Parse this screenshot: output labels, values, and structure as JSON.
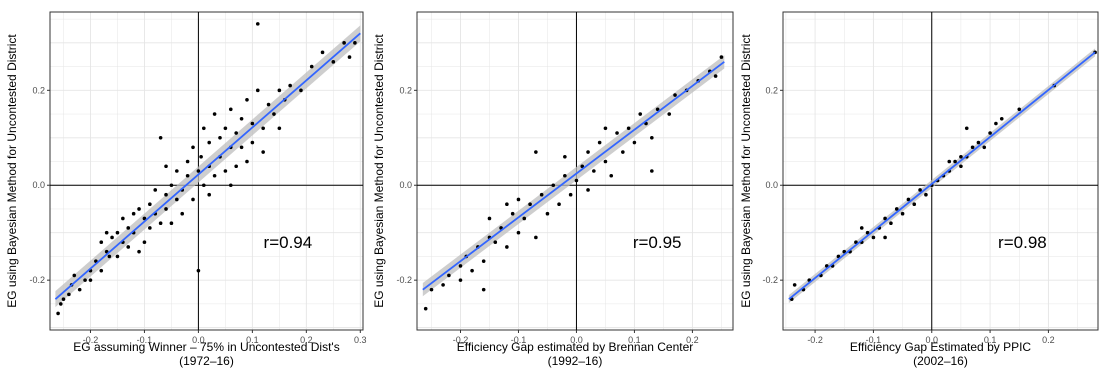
{
  "chart_data": [
    {
      "type": "scatter",
      "xlabel": "EG assuming Winner – 75% in Uncontested Dist's",
      "xlabel2": "(1972–16)",
      "ylabel": "EG using Bayesian Method for Uncontested District",
      "annotation": "r=0.94",
      "xlim": [
        -0.275,
        0.305
      ],
      "ylim": [
        -0.305,
        0.365
      ],
      "x_ticks": [
        -0.2,
        -0.1,
        0.0,
        0.1,
        0.2,
        0.3
      ],
      "x_tick_labels": [
        "-0.2",
        "-0.1",
        "0.0",
        "0.1",
        "0.2",
        "0.3"
      ],
      "y_ticks": [
        -0.2,
        0.0,
        0.2
      ],
      "y_tick_labels": [
        "-0.2",
        "0.0",
        "0.2"
      ],
      "grid": true,
      "fit": {
        "type": "linear",
        "x": [
          -0.265,
          0.3
        ],
        "y": [
          -0.24,
          0.32
        ],
        "band": 0.012
      },
      "points": [
        [
          -0.26,
          -0.27
        ],
        [
          -0.255,
          -0.25
        ],
        [
          -0.25,
          -0.24
        ],
        [
          -0.24,
          -0.23
        ],
        [
          -0.235,
          -0.21
        ],
        [
          -0.22,
          -0.22
        ],
        [
          -0.21,
          -0.2
        ],
        [
          -0.2,
          -0.2
        ],
        [
          -0.2,
          -0.18
        ],
        [
          -0.19,
          -0.16
        ],
        [
          -0.18,
          -0.18
        ],
        [
          -0.18,
          -0.12
        ],
        [
          -0.17,
          -0.14
        ],
        [
          -0.165,
          -0.15
        ],
        [
          -0.16,
          -0.11
        ],
        [
          -0.15,
          -0.15
        ],
        [
          -0.15,
          -0.1
        ],
        [
          -0.14,
          -0.12
        ],
        [
          -0.13,
          -0.09
        ],
        [
          -0.13,
          -0.13
        ],
        [
          -0.12,
          -0.06
        ],
        [
          -0.12,
          -0.1
        ],
        [
          -0.11,
          -0.14
        ],
        [
          -0.1,
          -0.07
        ],
        [
          -0.1,
          -0.12
        ],
        [
          -0.09,
          -0.04
        ],
        [
          -0.09,
          -0.09
        ],
        [
          -0.08,
          -0.01
        ],
        [
          -0.08,
          -0.06
        ],
        [
          -0.07,
          0.1
        ],
        [
          -0.07,
          -0.08
        ],
        [
          -0.06,
          -0.02
        ],
        [
          -0.06,
          -0.05
        ],
        [
          -0.05,
          -0.08
        ],
        [
          -0.05,
          0.0
        ],
        [
          -0.04,
          -0.03
        ],
        [
          -0.04,
          0.03
        ],
        [
          -0.03,
          -0.01
        ],
        [
          -0.03,
          -0.06
        ],
        [
          -0.02,
          0.05
        ],
        [
          -0.02,
          0.02
        ],
        [
          -0.01,
          -0.03
        ],
        [
          -0.01,
          0.08
        ],
        [
          0.0,
          -0.18
        ],
        [
          0.0,
          0.03
        ],
        [
          0.005,
          0.06
        ],
        [
          0.01,
          0.0
        ],
        [
          0.01,
          0.12
        ],
        [
          0.02,
          0.09
        ],
        [
          0.02,
          0.04
        ],
        [
          0.03,
          0.02
        ],
        [
          0.03,
          0.15
        ],
        [
          0.04,
          0.06
        ],
        [
          0.04,
          0.1
        ],
        [
          0.05,
          0.12
        ],
        [
          0.05,
          0.03
        ],
        [
          0.06,
          0.08
        ],
        [
          0.06,
          0.16
        ],
        [
          0.07,
          0.11
        ],
        [
          0.07,
          0.04
        ],
        [
          0.08,
          0.14
        ],
        [
          0.08,
          0.08
        ],
        [
          0.09,
          0.05
        ],
        [
          0.09,
          0.18
        ],
        [
          0.1,
          0.13
        ],
        [
          0.1,
          0.09
        ],
        [
          0.11,
          0.2
        ],
        [
          0.11,
          0.34
        ],
        [
          0.12,
          0.12
        ],
        [
          0.13,
          0.17
        ],
        [
          0.14,
          0.15
        ],
        [
          0.15,
          0.2
        ],
        [
          0.16,
          0.18
        ],
        [
          0.17,
          0.21
        ],
        [
          0.19,
          0.2
        ],
        [
          0.21,
          0.25
        ],
        [
          0.23,
          0.28
        ],
        [
          0.25,
          0.26
        ],
        [
          0.27,
          0.3
        ],
        [
          0.29,
          0.3
        ],
        [
          0.28,
          0.27
        ],
        [
          -0.23,
          -0.19
        ],
        [
          -0.14,
          -0.07
        ],
        [
          -0.11,
          -0.05
        ],
        [
          -0.06,
          0.04
        ],
        [
          0.02,
          -0.02
        ],
        [
          0.06,
          0.0
        ],
        [
          0.12,
          0.07
        ],
        [
          -0.17,
          -0.1
        ],
        [
          0.15,
          0.12
        ]
      ]
    },
    {
      "type": "scatter",
      "xlabel": "Efficiency Gap estimated by Brennan Center",
      "xlabel2": "(1992–16)",
      "ylabel": "EG using Bayesian Method for Uncontested District",
      "annotation": "r=0.95",
      "xlim": [
        -0.275,
        0.27
      ],
      "ylim": [
        -0.305,
        0.365
      ],
      "x_ticks": [
        -0.2,
        -0.1,
        0.0,
        0.1,
        0.2
      ],
      "x_tick_labels": [
        "-0.2",
        "-0.1",
        "0.0",
        "0.1",
        "0.2"
      ],
      "y_ticks": [
        -0.2,
        0.0,
        0.2
      ],
      "y_tick_labels": [
        "-0.2",
        "0.0",
        "0.2"
      ],
      "grid": true,
      "fit": {
        "type": "linear",
        "x": [
          -0.265,
          0.255
        ],
        "y": [
          -0.22,
          0.26
        ],
        "band": 0.01
      },
      "points": [
        [
          -0.26,
          -0.26
        ],
        [
          -0.25,
          -0.22
        ],
        [
          -0.23,
          -0.21
        ],
        [
          -0.22,
          -0.19
        ],
        [
          -0.2,
          -0.17
        ],
        [
          -0.2,
          -0.2
        ],
        [
          -0.19,
          -0.15
        ],
        [
          -0.18,
          -0.18
        ],
        [
          -0.17,
          -0.13
        ],
        [
          -0.16,
          -0.16
        ],
        [
          -0.15,
          -0.11
        ],
        [
          -0.15,
          -0.07
        ],
        [
          -0.14,
          -0.12
        ],
        [
          -0.13,
          -0.09
        ],
        [
          -0.12,
          -0.13
        ],
        [
          -0.11,
          -0.06
        ],
        [
          -0.1,
          -0.1
        ],
        [
          -0.1,
          -0.03
        ],
        [
          -0.09,
          -0.07
        ],
        [
          -0.08,
          -0.04
        ],
        [
          -0.07,
          -0.11
        ],
        [
          -0.06,
          -0.02
        ],
        [
          -0.05,
          -0.06
        ],
        [
          -0.04,
          0.0
        ],
        [
          -0.03,
          -0.04
        ],
        [
          -0.02,
          0.06
        ],
        [
          -0.02,
          0.02
        ],
        [
          -0.01,
          -0.02
        ],
        [
          0.0,
          0.01
        ],
        [
          0.01,
          0.04
        ],
        [
          0.02,
          0.07
        ],
        [
          0.02,
          -0.01
        ],
        [
          0.03,
          0.03
        ],
        [
          0.04,
          0.09
        ],
        [
          0.05,
          0.05
        ],
        [
          0.06,
          0.02
        ],
        [
          0.07,
          0.11
        ],
        [
          0.08,
          0.07
        ],
        [
          0.09,
          0.12
        ],
        [
          0.1,
          0.09
        ],
        [
          0.11,
          0.15
        ],
        [
          0.12,
          0.13
        ],
        [
          0.13,
          0.1
        ],
        [
          0.14,
          0.16
        ],
        [
          0.16,
          0.15
        ],
        [
          0.17,
          0.19
        ],
        [
          0.19,
          0.2
        ],
        [
          0.21,
          0.22
        ],
        [
          0.23,
          0.24
        ],
        [
          0.24,
          0.23
        ],
        [
          0.25,
          0.27
        ],
        [
          -0.07,
          0.07
        ],
        [
          0.13,
          0.03
        ],
        [
          -0.16,
          -0.22
        ],
        [
          -0.12,
          -0.04
        ],
        [
          0.05,
          0.12
        ]
      ]
    },
    {
      "type": "scatter",
      "xlabel": "Efficiency Gap Estimated by PPIC",
      "xlabel2": "(2002–16)",
      "ylabel": "EG using Bayesian Method for Uncontested District",
      "annotation": "r=0.98",
      "xlim": [
        -0.255,
        0.285
      ],
      "ylim": [
        -0.305,
        0.365
      ],
      "x_ticks": [
        -0.2,
        -0.1,
        0.0,
        0.1,
        0.2
      ],
      "x_tick_labels": [
        "-0.2",
        "-0.1",
        "0.0",
        "0.1",
        "0.2"
      ],
      "y_ticks": [
        -0.2,
        0.0,
        0.2
      ],
      "y_tick_labels": [
        "-0.2",
        "0.0",
        "0.2"
      ],
      "grid": true,
      "fit": {
        "type": "linear",
        "x": [
          -0.245,
          0.28
        ],
        "y": [
          -0.24,
          0.28
        ],
        "band": 0.006
      },
      "points": [
        [
          -0.24,
          -0.24
        ],
        [
          -0.235,
          -0.21
        ],
        [
          -0.22,
          -0.22
        ],
        [
          -0.21,
          -0.2
        ],
        [
          -0.19,
          -0.19
        ],
        [
          -0.18,
          -0.17
        ],
        [
          -0.17,
          -0.17
        ],
        [
          -0.16,
          -0.15
        ],
        [
          -0.15,
          -0.14
        ],
        [
          -0.14,
          -0.14
        ],
        [
          -0.13,
          -0.12
        ],
        [
          -0.12,
          -0.12
        ],
        [
          -0.11,
          -0.1
        ],
        [
          -0.1,
          -0.11
        ],
        [
          -0.09,
          -0.09
        ],
        [
          -0.08,
          -0.07
        ],
        [
          -0.07,
          -0.08
        ],
        [
          -0.06,
          -0.05
        ],
        [
          -0.05,
          -0.06
        ],
        [
          -0.04,
          -0.03
        ],
        [
          -0.03,
          -0.04
        ],
        [
          -0.02,
          -0.01
        ],
        [
          -0.01,
          -0.02
        ],
        [
          0.0,
          0.0
        ],
        [
          0.01,
          0.01
        ],
        [
          0.02,
          0.02
        ],
        [
          0.03,
          0.03
        ],
        [
          0.04,
          0.05
        ],
        [
          0.05,
          0.06
        ],
        [
          0.06,
          0.06
        ],
        [
          0.07,
          0.08
        ],
        [
          0.08,
          0.09
        ],
        [
          0.09,
          0.08
        ],
        [
          0.1,
          0.11
        ],
        [
          0.11,
          0.13
        ],
        [
          0.12,
          0.14
        ],
        [
          0.15,
          0.16
        ],
        [
          0.21,
          0.21
        ],
        [
          0.28,
          0.28
        ],
        [
          0.06,
          0.12
        ],
        [
          -0.08,
          -0.11
        ],
        [
          0.03,
          0.05
        ],
        [
          -0.12,
          -0.09
        ],
        [
          0.05,
          0.04
        ]
      ]
    }
  ]
}
